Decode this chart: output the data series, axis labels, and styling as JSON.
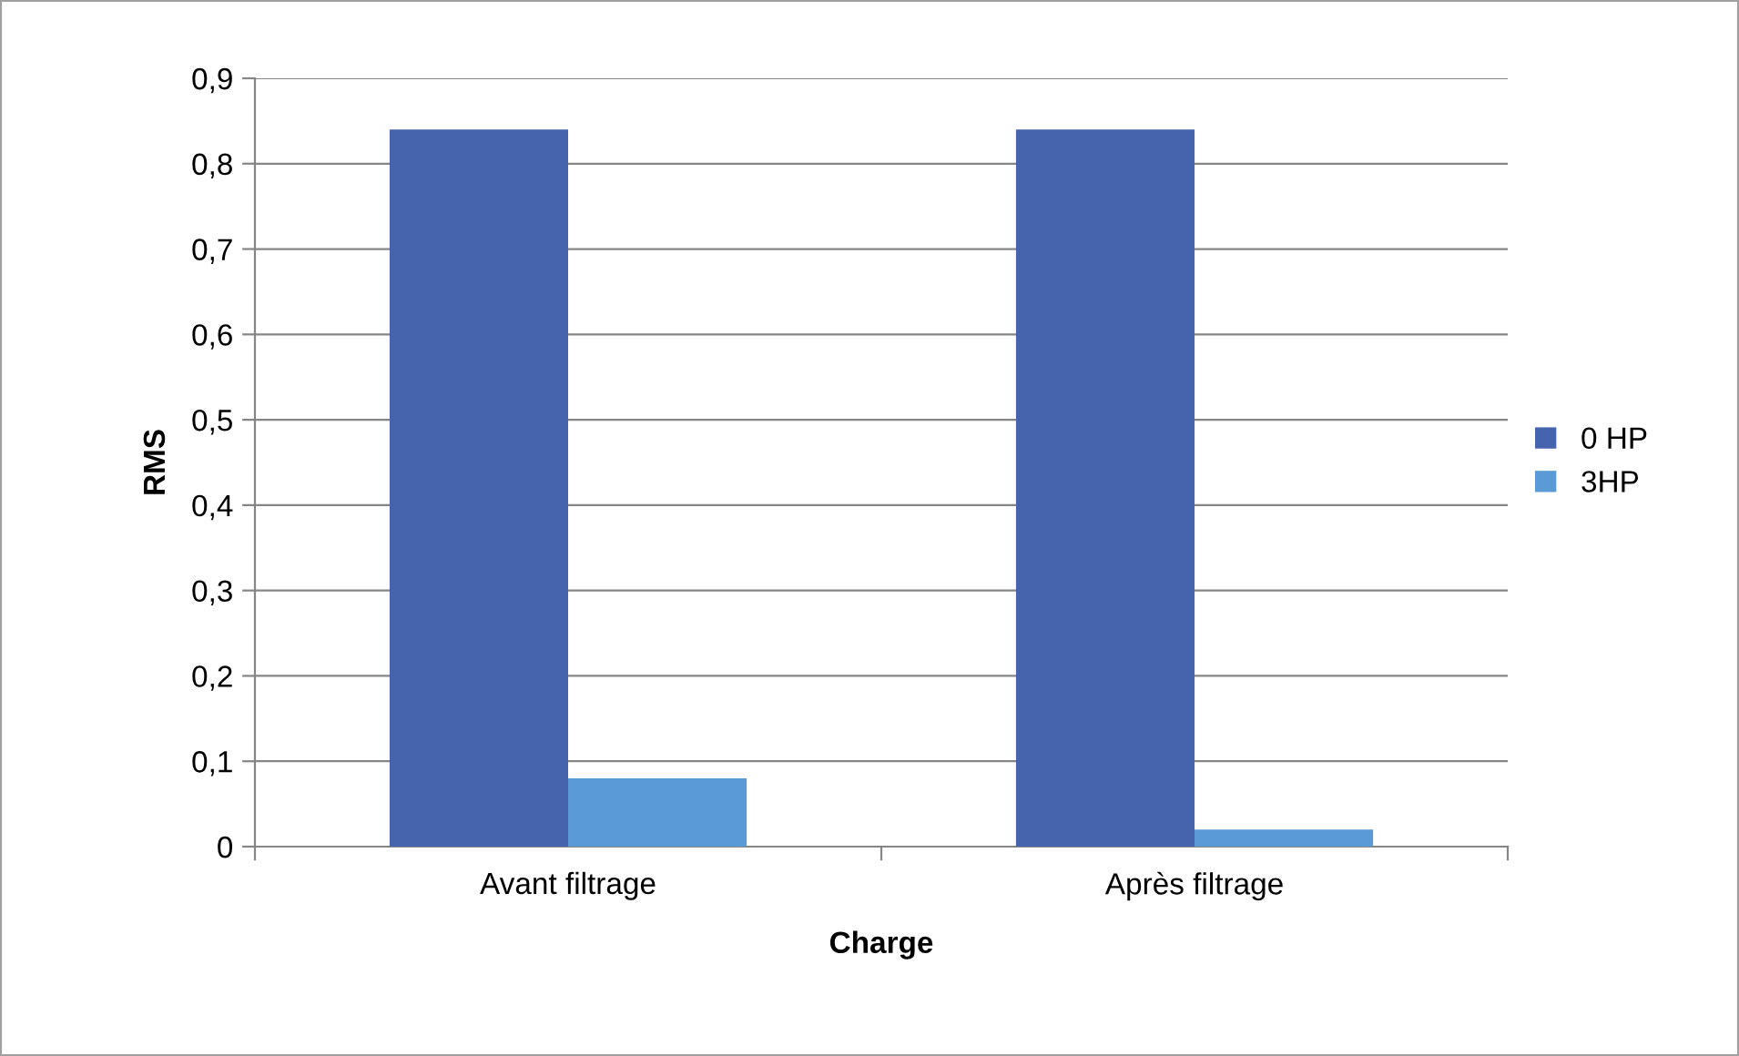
{
  "chart_data": {
    "type": "bar",
    "xlabel": "Charge",
    "ylabel": "RMS",
    "categories": [
      "Avant filtrage",
      "Après filtrage"
    ],
    "series": [
      {
        "name": "0 HP",
        "color": "#4564ad",
        "values": [
          0.84,
          0.84
        ]
      },
      {
        "name": "3HP",
        "color": "#5b9bd5",
        "values": [
          0.08,
          0.02
        ]
      }
    ],
    "ylim": [
      0,
      0.9
    ],
    "yticks": [
      0,
      {
        "value": 0.1,
        "label": "0,1"
      },
      {
        "value": 0.2,
        "label": "0,2"
      },
      {
        "value": 0.3,
        "label": "0,3"
      },
      {
        "value": 0.4,
        "label": "0,4"
      },
      {
        "value": 0.5,
        "label": "0,5"
      },
      {
        "value": 0.6,
        "label": "0,6"
      },
      {
        "value": 0.7,
        "label": "0,7"
      },
      {
        "value": 0.8,
        "label": "0,8"
      },
      {
        "value": 0.9,
        "label": "0,9"
      }
    ],
    "grid": "y",
    "legend": "right"
  }
}
